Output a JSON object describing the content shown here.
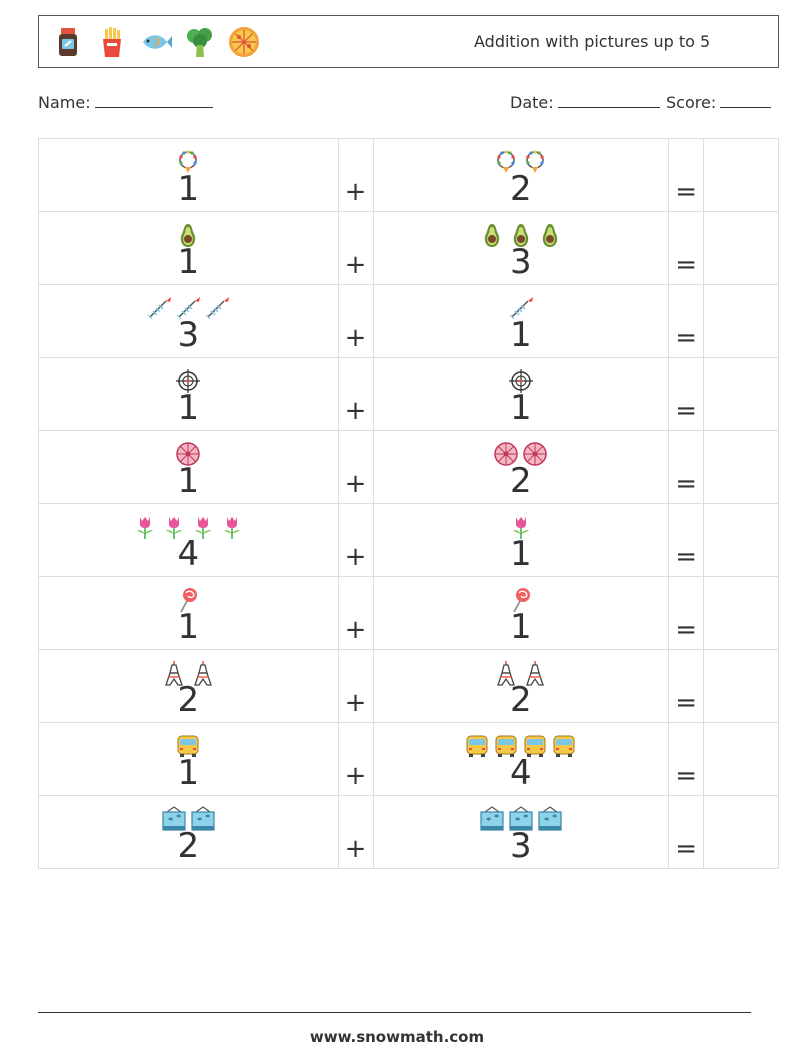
{
  "header": {
    "title": "Addition with pictures up to 5",
    "icons": [
      "jar-icon",
      "fries-icon",
      "fish-icon",
      "broccoli-icon",
      "pizza-icon"
    ]
  },
  "info": {
    "name_label": "Name:",
    "date_label": "Date:",
    "score_label": "Score:"
  },
  "symbols": {
    "plus": "+",
    "equals": "="
  },
  "problems": [
    {
      "a": 1,
      "b": 2,
      "icon": "necklace-icon"
    },
    {
      "a": 1,
      "b": 3,
      "icon": "avocado-icon"
    },
    {
      "a": 3,
      "b": 1,
      "icon": "fishbone-icon"
    },
    {
      "a": 1,
      "b": 1,
      "icon": "crosshair-icon"
    },
    {
      "a": 1,
      "b": 2,
      "icon": "ferris-wheel-icon"
    },
    {
      "a": 4,
      "b": 1,
      "icon": "tulip-icon"
    },
    {
      "a": 1,
      "b": 1,
      "icon": "lollipop-icon"
    },
    {
      "a": 2,
      "b": 2,
      "icon": "eiffel-tower-icon"
    },
    {
      "a": 1,
      "b": 4,
      "icon": "school-bus-icon"
    },
    {
      "a": 2,
      "b": 3,
      "icon": "aquarium-icon"
    }
  ],
  "footer": {
    "url": "www.snowmath.com"
  }
}
